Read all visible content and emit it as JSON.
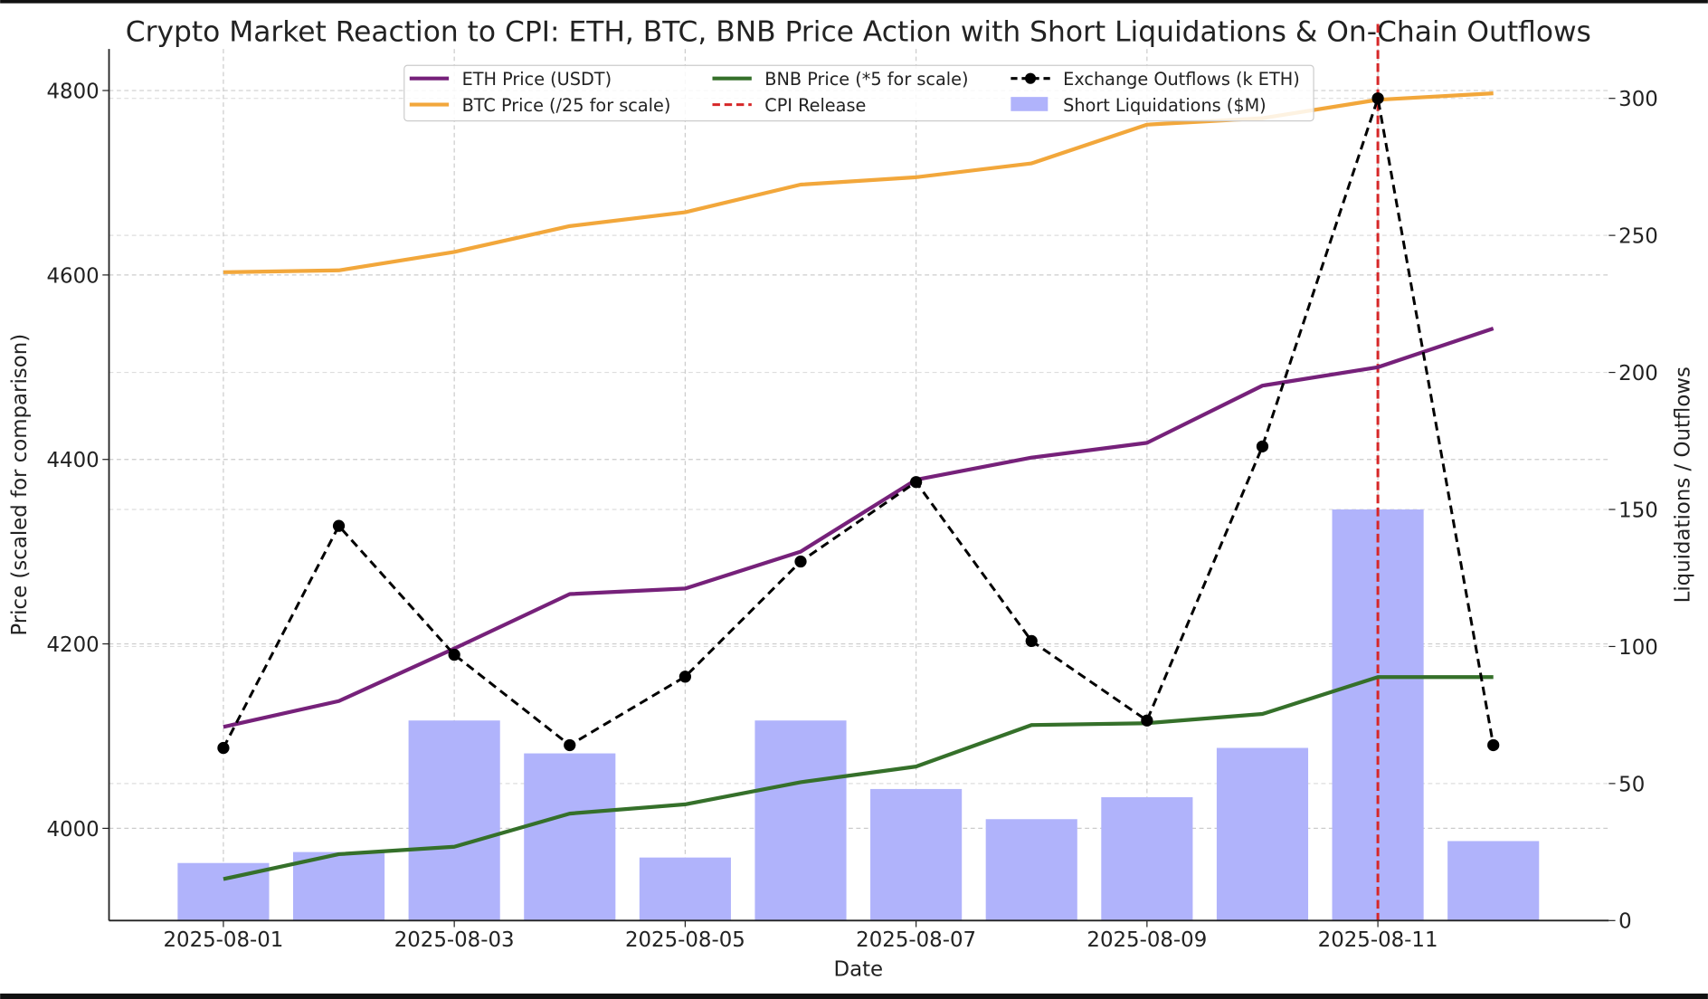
{
  "chart_data": {
    "type": "line",
    "title": "Crypto Market Reaction to CPI: ETH, BTC, BNB Price Action with Short Liquidations & On-Chain Outflows",
    "xlabel": "Date",
    "ylabel": "Price (scaled for comparison)",
    "ylabel_right": "Liquidations / Outflows",
    "x": [
      "2025-08-01",
      "2025-08-02",
      "2025-08-03",
      "2025-08-04",
      "2025-08-05",
      "2025-08-06",
      "2025-08-07",
      "2025-08-08",
      "2025-08-09",
      "2025-08-10",
      "2025-08-11",
      "2025-08-12"
    ],
    "xtick_labels": [
      "2025-08-01",
      "2025-08-03",
      "2025-08-05",
      "2025-08-07",
      "2025-08-09",
      "2025-08-11"
    ],
    "ylim": [
      3900,
      4845
    ],
    "yticks": [
      4000,
      4200,
      4400,
      4600,
      4800
    ],
    "ylim_right": [
      0,
      318
    ],
    "yticks_right": [
      0,
      50,
      100,
      150,
      200,
      250,
      300
    ],
    "grid": true,
    "legend_placement": "top-center",
    "series": [
      {
        "name": "ETH Price (USDT)",
        "axis": "left",
        "kind": "line",
        "color": "#76217a",
        "values": [
          4110,
          4138,
          4195,
          4254,
          4260,
          4300,
          4378,
          4402,
          4418,
          4480,
          4500,
          4542
        ]
      },
      {
        "name": "BTC Price (/25 for scale)",
        "axis": "left",
        "kind": "line",
        "color": "#f2a73b",
        "values": [
          4603,
          4605,
          4625,
          4653,
          4668,
          4698,
          4706,
          4721,
          4763,
          4770,
          4790,
          4797
        ]
      },
      {
        "name": "BNB Price (*5 for scale)",
        "axis": "left",
        "kind": "line",
        "color": "#35702a",
        "values": [
          3945,
          3972,
          3980,
          4016,
          4026,
          4050,
          4067,
          4112,
          4114,
          4124,
          4164,
          4164
        ]
      },
      {
        "name": "Exchange Outflows (k ETH)",
        "axis": "right",
        "kind": "dashed-line-markers",
        "color": "#000000",
        "values": [
          63,
          144,
          97,
          64,
          89,
          131,
          160,
          102,
          73,
          173,
          300,
          64
        ]
      },
      {
        "name": "Short Liquidations ($M)",
        "axis": "right",
        "kind": "bar",
        "color": "#b0b3fb",
        "values": [
          21,
          25,
          73,
          61,
          23,
          73,
          48,
          37,
          45,
          63,
          150,
          29
        ]
      }
    ],
    "annotations": [
      {
        "name": "CPI Release",
        "kind": "vline",
        "x": "2025-08-11",
        "color": "#d62728"
      }
    ]
  }
}
